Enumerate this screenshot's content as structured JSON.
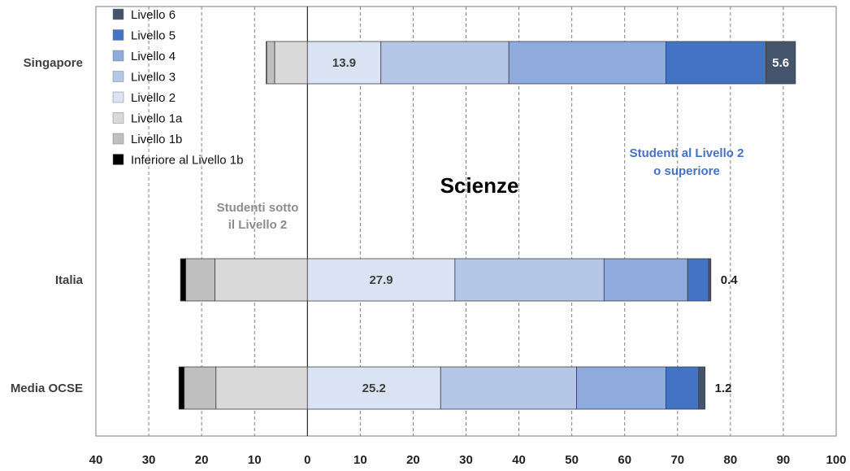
{
  "chart_data": {
    "type": "bar",
    "orientation": "horizontal-stacked-diverging",
    "title": "Scienze",
    "x_ticks": [
      "40",
      "30",
      "20",
      "10",
      "0",
      "10",
      "20",
      "30",
      "40",
      "50",
      "60",
      "70",
      "80",
      "90",
      "100"
    ],
    "xlim": [
      -40,
      100
    ],
    "grid": "vertical dashed",
    "legend_position": "top-left",
    "annotations": {
      "below": "Studenti sotto il Livello 2",
      "below_lines": [
        "Studenti sotto",
        "il Livello 2"
      ],
      "above": "Studenti al Livello 2 o superiore",
      "above_lines": [
        "Studenti al Livello 2",
        "o superiore"
      ]
    },
    "legend": [
      {
        "label": "Livello 6",
        "color": "#44546a"
      },
      {
        "label": "Livello 5",
        "color": "#4472c4"
      },
      {
        "label": "Livello 4",
        "color": "#8faadc"
      },
      {
        "label": "Livello 3",
        "color": "#b4c7e7"
      },
      {
        "label": "Livello 2",
        "color": "#dae3f3"
      },
      {
        "label": "Livello 1a",
        "color": "#d9d9d9"
      },
      {
        "label": "Livello 1b",
        "color": "#bfbfbf"
      },
      {
        "label": "Inferiore al Livello 1b",
        "color": "#000000"
      }
    ],
    "categories": [
      "Singapore",
      "Italia",
      "Media OCSE"
    ],
    "series": [
      {
        "name": "Inferiore al Livello 1b",
        "values": [
          0.1,
          1.0,
          1.0
        ]
      },
      {
        "name": "Livello 1b",
        "values": [
          1.5,
          5.5,
          6.0
        ]
      },
      {
        "name": "Livello 1a",
        "values": [
          6.2,
          17.5,
          17.3
        ]
      },
      {
        "name": "Livello 2",
        "values": [
          13.9,
          27.9,
          25.2
        ]
      },
      {
        "name": "Livello 3",
        "values": [
          24.2,
          28.2,
          25.7
        ]
      },
      {
        "name": "Livello 4",
        "values": [
          29.7,
          15.8,
          16.9
        ]
      },
      {
        "name": "Livello 5",
        "values": [
          18.9,
          4.0,
          6.2
        ]
      },
      {
        "name": "Livello 6",
        "values": [
          5.6,
          0.4,
          1.2
        ]
      }
    ],
    "data_labels": [
      {
        "category": "Singapore",
        "inside_level2": "13.9",
        "level6": "5.6"
      },
      {
        "category": "Italia",
        "inside_level2": "27.9",
        "level6": "0.4"
      },
      {
        "category": "Media OCSE",
        "inside_level2": "25.2",
        "level6": "1.2"
      }
    ]
  }
}
